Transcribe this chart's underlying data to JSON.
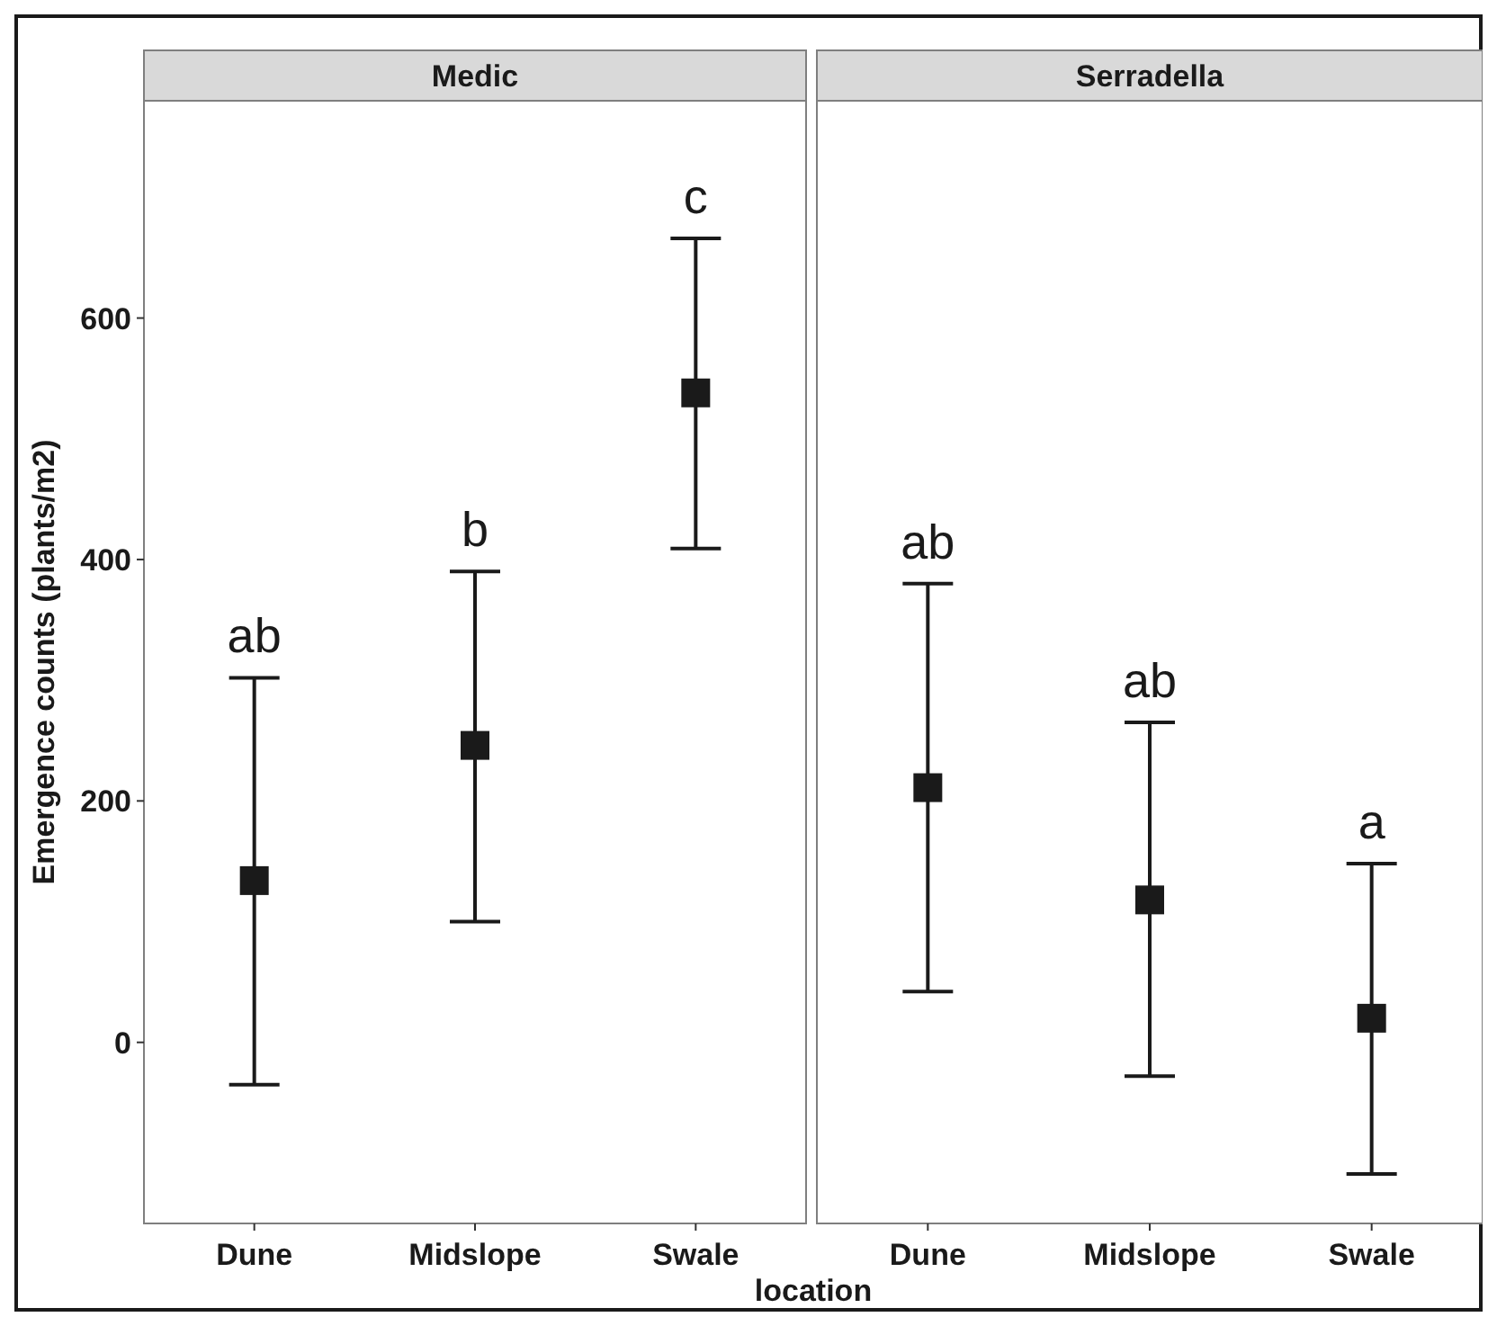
{
  "chart_data": [
    {
      "type": "scatter",
      "title": "Medic",
      "xlabel": "location",
      "ylabel": "Emergence counts (plants/m2)",
      "categories": [
        "Dune",
        "Midslope",
        "Swale"
      ],
      "marker": "square",
      "ylim": [
        -150,
        780
      ],
      "yticks": [
        0,
        200,
        400,
        600
      ],
      "grid": false,
      "series": [
        {
          "color": "#1a1a1a",
          "values": [
            134,
            246,
            538
          ],
          "errors": [
            [
              -35,
              302
            ],
            [
              100,
              390
            ],
            [
              409,
              666
            ]
          ]
        }
      ],
      "annotations": [
        "ab",
        "b",
        "c"
      ]
    },
    {
      "type": "scatter",
      "title": "Serradella",
      "categories": [
        "Dune",
        "Midslope",
        "Swale"
      ],
      "marker": "square",
      "ylim": [
        -150,
        780
      ],
      "grid": false,
      "tick_labels": "x",
      "series": [
        {
          "color": "#1a1a1a",
          "values": [
            211,
            118,
            20
          ],
          "errors": [
            [
              42,
              380
            ],
            [
              -28,
              265
            ],
            [
              -109,
              148
            ]
          ]
        }
      ],
      "annotations": [
        "ab",
        "ab",
        "a"
      ]
    }
  ]
}
